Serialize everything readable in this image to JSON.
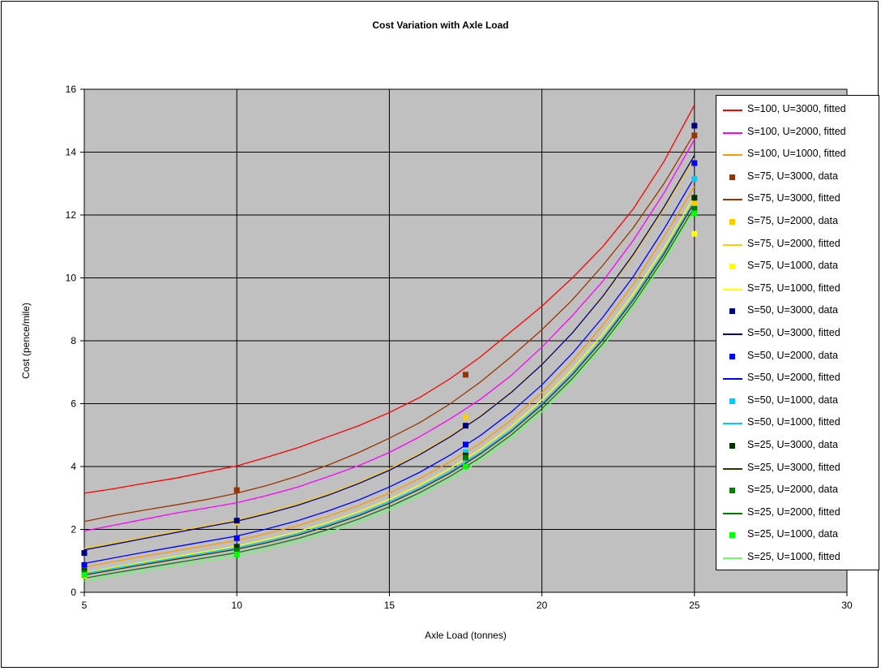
{
  "chart_data": {
    "type": "line",
    "title": "Cost Variation with Axle Load",
    "xlabel": "Axle Load (tonnes)",
    "ylabel": "Cost (pence/mile)",
    "xlim": [
      5,
      30
    ],
    "ylim": [
      0,
      16
    ],
    "xticks": [
      5,
      10,
      15,
      20,
      25,
      30
    ],
    "yticks": [
      0,
      2,
      4,
      6,
      8,
      10,
      12,
      14,
      16
    ],
    "grid": true,
    "plot_background": "#c0c0c0",
    "legend_position": "right",
    "fitted_x": [
      5,
      6,
      7,
      8,
      9,
      10,
      11,
      12,
      13,
      14,
      15,
      16,
      17,
      18,
      19,
      20,
      21,
      22,
      23,
      24,
      25
    ],
    "series": [
      {
        "name": "S=100, U=3000, fitted",
        "kind": "line",
        "color": "#ff0000",
        "y": [
          3.15,
          3.3,
          3.47,
          3.63,
          3.83,
          4.02,
          4.3,
          4.6,
          4.95,
          5.3,
          5.72,
          6.2,
          6.8,
          7.5,
          8.3,
          9.1,
          10.0,
          11.0,
          12.2,
          13.7,
          15.5
        ]
      },
      {
        "name": "S=100, U=2000, fitted",
        "kind": "line",
        "color": "#ff00ff",
        "y": [
          1.95,
          2.14,
          2.33,
          2.52,
          2.68,
          2.85,
          3.08,
          3.35,
          3.68,
          4.03,
          4.45,
          4.95,
          5.52,
          6.15,
          6.9,
          7.8,
          8.8,
          9.9,
          11.2,
          12.7,
          14.4
        ]
      },
      {
        "name": "S=100, U=1000, fitted",
        "kind": "line",
        "color": "#ff9900",
        "y": [
          0.8,
          0.98,
          1.15,
          1.32,
          1.48,
          1.65,
          1.87,
          2.12,
          2.42,
          2.76,
          3.15,
          3.62,
          4.15,
          4.75,
          5.48,
          6.35,
          7.35,
          8.5,
          9.8,
          11.3,
          12.9
        ]
      },
      {
        "name": "S=75, U=3000, data",
        "kind": "marker",
        "color": "#993300",
        "x": [
          5,
          10,
          17.5,
          25
        ],
        "y": [
          1.25,
          3.25,
          6.92,
          14.53
        ]
      },
      {
        "name": "S=75, U=3000, fitted",
        "kind": "line",
        "color": "#993300",
        "y": [
          2.25,
          2.45,
          2.62,
          2.78,
          2.95,
          3.15,
          3.4,
          3.7,
          4.05,
          4.45,
          4.9,
          5.4,
          6.0,
          6.7,
          7.5,
          8.35,
          9.3,
          10.4,
          11.6,
          13.0,
          14.6
        ]
      },
      {
        "name": "S=75, U=2000, data",
        "kind": "marker",
        "color": "#ffcc00",
        "x": [
          5,
          10,
          17.5,
          25
        ],
        "y": [
          0.72,
          2.22,
          5.57,
          12.35
        ]
      },
      {
        "name": "S=75, U=2000, fitted",
        "kind": "line",
        "color": "#ffcc00",
        "y": [
          1.4,
          1.58,
          1.76,
          1.95,
          2.12,
          2.3,
          2.55,
          2.82,
          3.14,
          3.5,
          3.92,
          4.42,
          4.98,
          5.62,
          6.38,
          7.25,
          8.25,
          9.4,
          10.7,
          12.2,
          13.8
        ]
      },
      {
        "name": "S=75, U=1000, data",
        "kind": "marker",
        "color": "#ffff00",
        "x": [
          5,
          10,
          17.5,
          25
        ],
        "y": [
          0.52,
          1.37,
          4.3,
          11.4
        ]
      },
      {
        "name": "S=75, U=1000, fitted",
        "kind": "line",
        "color": "#ffff00",
        "y": [
          0.62,
          0.8,
          0.97,
          1.14,
          1.3,
          1.47,
          1.69,
          1.93,
          2.23,
          2.57,
          2.96,
          3.42,
          3.95,
          4.56,
          5.28,
          6.12,
          7.1,
          8.22,
          9.5,
          10.95,
          12.6
        ]
      },
      {
        "name": "S=50, U=3000, data",
        "kind": "marker",
        "color": "#000080",
        "x": [
          5,
          10,
          17.5,
          25
        ],
        "y": [
          1.25,
          2.28,
          5.3,
          14.84
        ]
      },
      {
        "name": "S=50, U=3000, fitted",
        "kind": "line",
        "color": "#000080",
        "y": [
          1.35,
          1.53,
          1.72,
          1.9,
          2.08,
          2.26,
          2.5,
          2.77,
          3.09,
          3.46,
          3.88,
          4.38,
          4.95,
          5.6,
          6.36,
          7.24,
          8.25,
          9.42,
          10.75,
          12.25,
          13.9
        ]
      },
      {
        "name": "S=50, U=2000, data",
        "kind": "marker",
        "color": "#0000ff",
        "x": [
          5,
          10,
          17.5,
          25
        ],
        "y": [
          0.87,
          1.72,
          4.7,
          13.65
        ]
      },
      {
        "name": "S=50, U=2000, fitted",
        "kind": "line",
        "color": "#0000ff",
        "y": [
          0.92,
          1.1,
          1.28,
          1.45,
          1.62,
          1.79,
          2.02,
          2.28,
          2.59,
          2.94,
          3.35,
          3.82,
          4.37,
          5.0,
          5.74,
          6.6,
          7.6,
          8.75,
          10.05,
          11.55,
          13.2
        ]
      },
      {
        "name": "S=50, U=1000, data",
        "kind": "marker",
        "color": "#00ccff",
        "x": [
          5,
          10,
          17.5,
          25
        ],
        "y": [
          0.58,
          1.32,
          4.45,
          13.15
        ]
      },
      {
        "name": "S=50, U=1000, fitted",
        "kind": "line",
        "color": "#00ccff",
        "y": [
          0.6,
          0.77,
          0.94,
          1.1,
          1.26,
          1.42,
          1.63,
          1.87,
          2.16,
          2.49,
          2.88,
          3.33,
          3.85,
          4.46,
          5.17,
          6.0,
          6.97,
          8.08,
          9.36,
          10.82,
          12.45
        ]
      },
      {
        "name": "S=25, U=3000, data",
        "kind": "marker",
        "color": "#003300",
        "x": [
          5,
          10,
          17.5,
          25
        ],
        "y": [
          0.68,
          1.45,
          4.35,
          12.55
        ]
      },
      {
        "name": "S=25, U=3000, fitted",
        "kind": "line",
        "color": "#333300",
        "y": [
          0.55,
          0.72,
          0.89,
          1.05,
          1.21,
          1.37,
          1.58,
          1.82,
          2.11,
          2.44,
          2.83,
          3.28,
          3.8,
          4.41,
          5.12,
          5.95,
          6.92,
          8.03,
          9.3,
          10.76,
          12.4
        ]
      },
      {
        "name": "S=25, U=2000, data",
        "kind": "marker",
        "color": "#008000",
        "x": [
          5,
          10,
          17.5,
          25
        ],
        "y": [
          0.62,
          1.33,
          4.28,
          12.2
        ]
      },
      {
        "name": "S=25, U=2000, fitted",
        "kind": "line",
        "color": "#008000",
        "y": [
          0.45,
          0.62,
          0.78,
          0.94,
          1.1,
          1.26,
          1.47,
          1.71,
          2.0,
          2.33,
          2.72,
          3.17,
          3.69,
          4.3,
          5.01,
          5.84,
          6.8,
          7.91,
          9.18,
          10.63,
          12.25
        ]
      },
      {
        "name": "S=25, U=1000, data",
        "kind": "marker",
        "color": "#00ff00",
        "x": [
          5,
          10,
          17.5,
          25
        ],
        "y": [
          0.55,
          1.2,
          4.0,
          12.05
        ]
      },
      {
        "name": "S=25, U=1000, fitted",
        "kind": "line",
        "color": "#66ff66",
        "y": [
          0.35,
          0.52,
          0.68,
          0.84,
          1.0,
          1.16,
          1.37,
          1.61,
          1.9,
          2.23,
          2.62,
          3.07,
          3.59,
          4.2,
          4.91,
          5.74,
          6.7,
          7.81,
          9.08,
          10.53,
          12.15
        ]
      }
    ]
  }
}
